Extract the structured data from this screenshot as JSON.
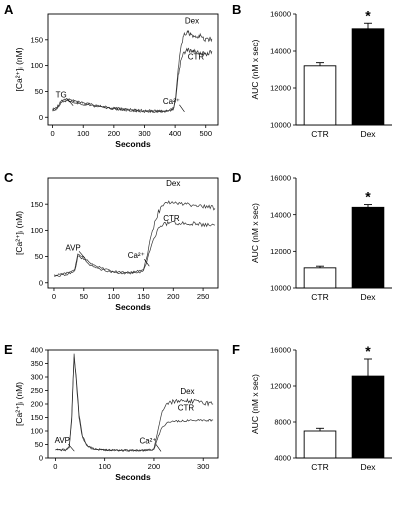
{
  "panels": [
    {
      "letter": "A",
      "kind": "trace",
      "ylabel": "[Ca²⁺]ᵢ (nM)",
      "xlabel": "Seconds",
      "xticks": [
        0,
        100,
        200,
        300,
        400,
        500
      ],
      "yticks": [
        0,
        50,
        100,
        150
      ],
      "annotations": [
        {
          "text": "TG",
          "x": 28,
          "y": 38
        },
        {
          "text": "Ca²⁺",
          "x": 388,
          "y": 26
        },
        {
          "text": "Dex",
          "x": 455,
          "y": 182
        },
        {
          "text": "CTR",
          "x": 468,
          "y": 112
        }
      ]
    },
    {
      "letter": "B",
      "kind": "bar",
      "ylabel": "AUC (nM x sec)",
      "yticks": [
        10000,
        12000,
        14000,
        16000
      ],
      "categories": [
        "CTR",
        "Dex"
      ],
      "sig_marker": "*"
    },
    {
      "letter": "C",
      "kind": "trace",
      "ylabel": "[Ca²⁺]ᵢ (nM)",
      "xlabel": "Seconds",
      "xticks": [
        0,
        50,
        100,
        150,
        200,
        250
      ],
      "yticks": [
        0,
        50,
        100,
        150
      ],
      "annotations": [
        {
          "text": "AVP",
          "x": 32,
          "y": 62
        },
        {
          "text": "Ca²⁺",
          "x": 138,
          "y": 47
        },
        {
          "text": "Dex",
          "x": 200,
          "y": 185
        },
        {
          "text": "CTR",
          "x": 197,
          "y": 118
        }
      ]
    },
    {
      "letter": "D",
      "kind": "bar",
      "ylabel": "AUC (nM x sec)",
      "yticks": [
        10000,
        12000,
        14000,
        16000
      ],
      "categories": [
        "CTR",
        "Dex"
      ],
      "sig_marker": "*"
    },
    {
      "letter": "E",
      "kind": "trace",
      "ylabel": "[Ca²⁺]ᵢ (nM)",
      "xlabel": "Seconds",
      "xticks": [
        0,
        100,
        200,
        300
      ],
      "yticks": [
        0,
        50,
        100,
        150,
        200,
        250,
        300,
        350,
        400
      ],
      "annotations": [
        {
          "text": "AVP",
          "x": 14,
          "y": 55
        },
        {
          "text": "Ca²⁺",
          "x": 188,
          "y": 54
        },
        {
          "text": "Dex",
          "x": 268,
          "y": 237
        },
        {
          "text": "CTR",
          "x": 265,
          "y": 176
        }
      ]
    },
    {
      "letter": "F",
      "kind": "bar",
      "ylabel": "AUC (nM x sec)",
      "yticks": [
        4000,
        8000,
        12000,
        16000
      ],
      "categories": [
        "CTR",
        "Dex"
      ],
      "sig_marker": "*"
    }
  ],
  "chart_data": [
    {
      "panel": "A",
      "type": "line",
      "xlabel": "Seconds",
      "ylabel": "[Ca²⁺]ᵢ (nM)",
      "xlim": [
        -15,
        540
      ],
      "ylim": [
        -15,
        200
      ],
      "series": [
        {
          "name": "Dex",
          "x": [
            0,
            15,
            30,
            50,
            70,
            100,
            150,
            200,
            250,
            300,
            350,
            380,
            395,
            402,
            410,
            420,
            430,
            440,
            460,
            480,
            500,
            520
          ],
          "y": [
            15,
            20,
            33,
            35,
            32,
            28,
            22,
            18,
            15,
            13,
            12,
            13,
            18,
            40,
            95,
            140,
            160,
            165,
            155,
            158,
            150,
            152
          ]
        },
        {
          "name": "CTR",
          "x": [
            0,
            15,
            30,
            50,
            70,
            100,
            150,
            200,
            250,
            300,
            350,
            380,
            395,
            402,
            410,
            420,
            430,
            440,
            460,
            480,
            500,
            520
          ],
          "y": [
            12,
            17,
            30,
            32,
            29,
            25,
            20,
            16,
            13,
            11,
            11,
            12,
            16,
            35,
            80,
            112,
            125,
            130,
            128,
            125,
            122,
            128
          ]
        }
      ]
    },
    {
      "panel": "B",
      "type": "bar",
      "categories": [
        "CTR",
        "Dex"
      ],
      "values": [
        13200,
        15200
      ],
      "errors": [
        170,
        300
      ],
      "colors": [
        "#ffffff",
        "#000000"
      ],
      "ylabel": "AUC (nM x sec)",
      "ylim": [
        10000,
        16000
      ]
    },
    {
      "panel": "C",
      "type": "line",
      "xlabel": "Seconds",
      "ylabel": "[Ca²⁺]ᵢ (nM)",
      "xlim": [
        -10,
        275
      ],
      "ylim": [
        -10,
        200
      ],
      "series": [
        {
          "name": "Dex",
          "x": [
            0,
            20,
            35,
            40,
            50,
            60,
            80,
            100,
            120,
            140,
            150,
            155,
            165,
            175,
            185,
            200,
            220,
            240,
            260,
            270
          ],
          "y": [
            15,
            18,
            25,
            55,
            50,
            38,
            28,
            22,
            20,
            22,
            26,
            45,
            100,
            135,
            150,
            155,
            150,
            148,
            145,
            142
          ]
        },
        {
          "name": "CTR",
          "x": [
            0,
            20,
            35,
            40,
            50,
            60,
            80,
            100,
            120,
            140,
            150,
            155,
            165,
            175,
            185,
            200,
            220,
            240,
            260,
            270
          ],
          "y": [
            12,
            15,
            22,
            50,
            45,
            34,
            25,
            20,
            18,
            19,
            22,
            38,
            80,
            102,
            112,
            115,
            113,
            112,
            110,
            110
          ]
        }
      ]
    },
    {
      "panel": "D",
      "type": "bar",
      "categories": [
        "CTR",
        "Dex"
      ],
      "values": [
        11100,
        14400
      ],
      "errors": [
        90,
        150
      ],
      "colors": [
        "#ffffff",
        "#000000"
      ],
      "ylabel": "AUC (nM x sec)",
      "ylim": [
        10000,
        16000
      ]
    },
    {
      "panel": "E",
      "type": "line",
      "xlabel": "Seconds",
      "ylabel": "[Ca²⁺]ᵢ (nM)",
      "xlim": [
        -15,
        330
      ],
      "ylim": [
        0,
        400
      ],
      "series": [
        {
          "name": "Dex",
          "x": [
            0,
            20,
            28,
            33,
            38,
            42,
            48,
            55,
            65,
            80,
            100,
            140,
            180,
            200,
            205,
            215,
            225,
            240,
            260,
            280,
            300,
            320
          ],
          "y": [
            30,
            30,
            40,
            150,
            390,
            300,
            160,
            80,
            45,
            33,
            30,
            28,
            28,
            32,
            75,
            160,
            200,
            210,
            215,
            210,
            205,
            200
          ]
        },
        {
          "name": "CTR",
          "x": [
            0,
            20,
            28,
            33,
            38,
            42,
            48,
            55,
            65,
            80,
            100,
            140,
            180,
            200,
            205,
            215,
            225,
            240,
            260,
            280,
            300,
            320
          ],
          "y": [
            30,
            30,
            38,
            140,
            380,
            290,
            150,
            75,
            42,
            32,
            30,
            28,
            28,
            30,
            60,
            110,
            128,
            135,
            138,
            140,
            138,
            140
          ]
        }
      ]
    },
    {
      "panel": "F",
      "type": "bar",
      "categories": [
        "CTR",
        "Dex"
      ],
      "values": [
        7000,
        13100
      ],
      "errors": [
        300,
        1900
      ],
      "colors": [
        "#ffffff",
        "#000000"
      ],
      "ylabel": "AUC (nM x sec)",
      "ylim": [
        4000,
        16000
      ]
    }
  ]
}
